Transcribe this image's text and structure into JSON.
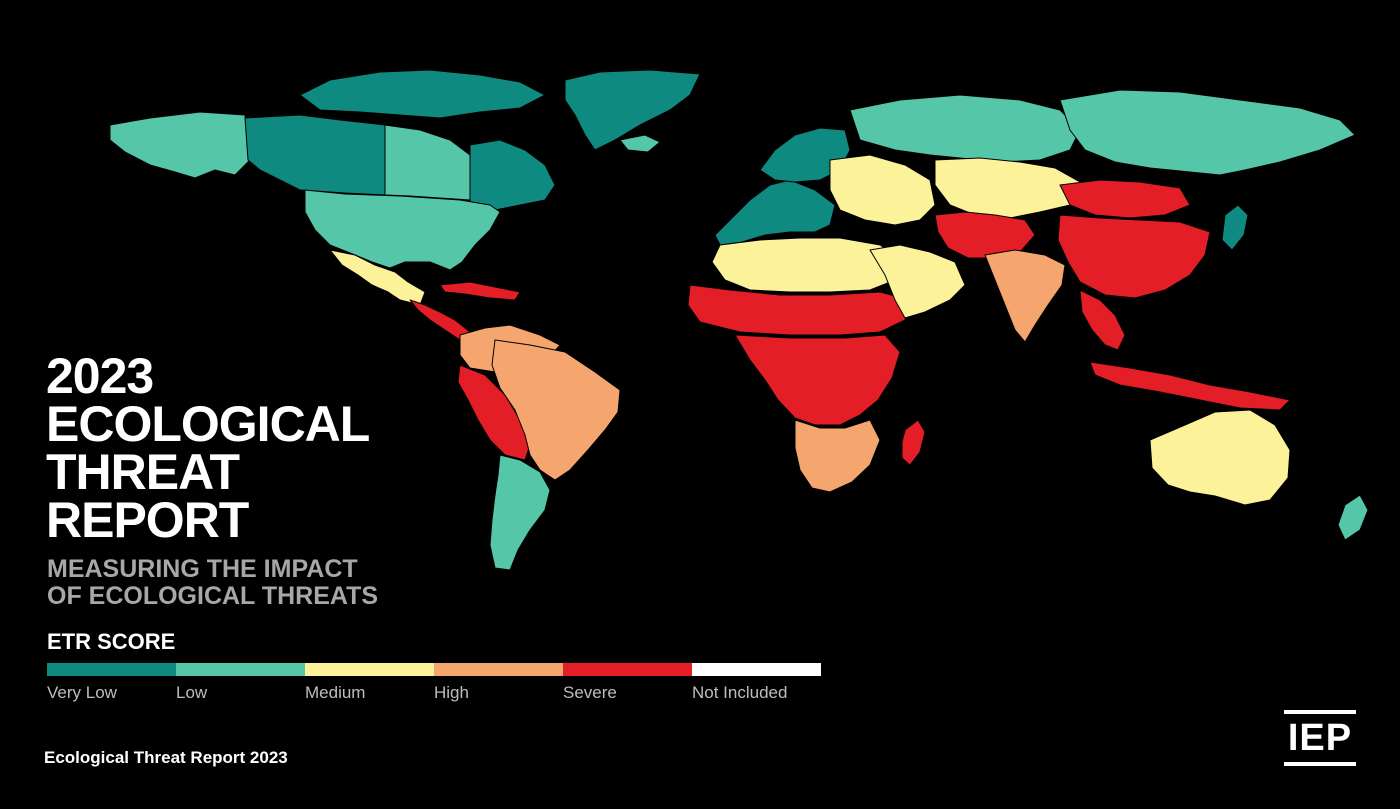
{
  "title_lines": [
    "2023",
    "ECOLOGICAL",
    "THREAT",
    "REPORT"
  ],
  "subtitle_lines": [
    "MEASURING THE IMPACT",
    "OF ECOLOGICAL THREATS"
  ],
  "legend": {
    "title": "ETR SCORE",
    "items": [
      {
        "label": "Very Low",
        "color": "#0f8a80"
      },
      {
        "label": "Low",
        "color": "#56c6a8"
      },
      {
        "label": "Medium",
        "color": "#fbf29a"
      },
      {
        "label": "High",
        "color": "#f5a66e"
      },
      {
        "label": "Severe",
        "color": "#e41e26"
      },
      {
        "label": "Not Included",
        "color": "#ffffff"
      }
    ]
  },
  "footer": "Ecological Threat Report 2023",
  "logo": "IEP",
  "map": {
    "regions": [
      {
        "name": "arctic-islands",
        "level": "Very Low"
      },
      {
        "name": "greenland",
        "level": "Very Low"
      },
      {
        "name": "alaska",
        "level": "Low"
      },
      {
        "name": "canada-west",
        "level": "Very Low"
      },
      {
        "name": "canada-central",
        "level": "Low"
      },
      {
        "name": "canada-east",
        "level": "Very Low"
      },
      {
        "name": "usa",
        "level": "Low"
      },
      {
        "name": "mexico",
        "level": "Medium"
      },
      {
        "name": "central-america",
        "level": "Severe"
      },
      {
        "name": "caribbean",
        "level": "Severe"
      },
      {
        "name": "colombia-venezuela",
        "level": "High"
      },
      {
        "name": "andes",
        "level": "Severe"
      },
      {
        "name": "brazil",
        "level": "High"
      },
      {
        "name": "argentina-chile",
        "level": "Low"
      },
      {
        "name": "iceland",
        "level": "Low"
      },
      {
        "name": "europe-west",
        "level": "Very Low"
      },
      {
        "name": "scandinavia",
        "level": "Very Low"
      },
      {
        "name": "europe-east",
        "level": "Medium"
      },
      {
        "name": "russia-west",
        "level": "Low"
      },
      {
        "name": "russia-east",
        "level": "Low"
      },
      {
        "name": "central-asia",
        "level": "Medium"
      },
      {
        "name": "mongolia",
        "level": "Severe"
      },
      {
        "name": "north-africa",
        "level": "Medium"
      },
      {
        "name": "sahel",
        "level": "Severe"
      },
      {
        "name": "central-africa",
        "level": "Severe"
      },
      {
        "name": "southern-africa",
        "level": "High"
      },
      {
        "name": "madagascar",
        "level": "Severe"
      },
      {
        "name": "middle-east",
        "level": "Medium"
      },
      {
        "name": "iran-afghanistan",
        "level": "Severe"
      },
      {
        "name": "india",
        "level": "High"
      },
      {
        "name": "china",
        "level": "Severe"
      },
      {
        "name": "southeast-asia",
        "level": "Severe"
      },
      {
        "name": "japan",
        "level": "Very Low"
      },
      {
        "name": "indonesia",
        "level": "Severe"
      },
      {
        "name": "australia",
        "level": "Medium"
      },
      {
        "name": "new-zealand",
        "level": "Low"
      }
    ]
  }
}
